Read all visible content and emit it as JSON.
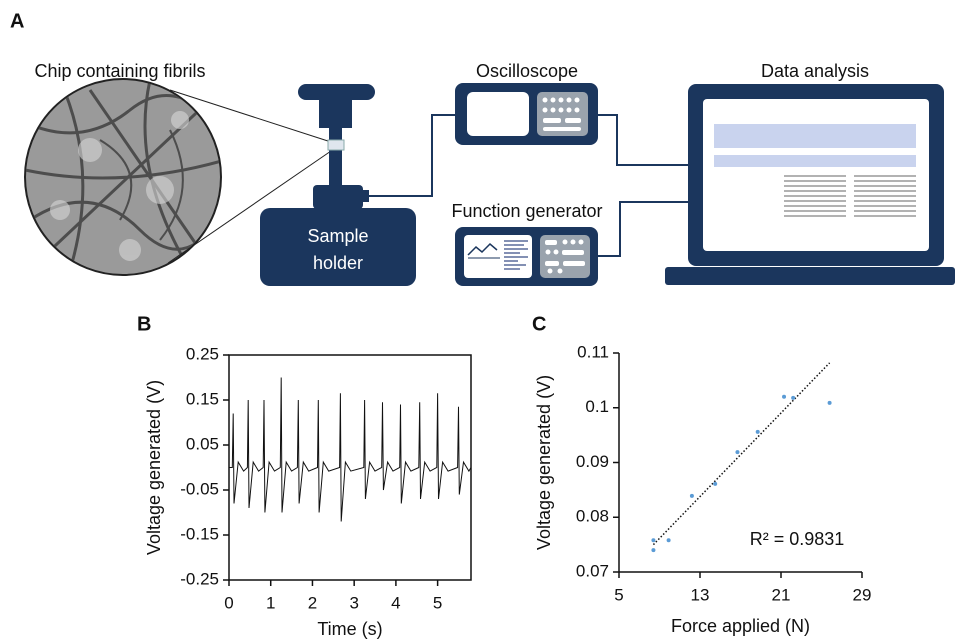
{
  "panel_a": {
    "label": "A",
    "chip_label": "Chip containing fibrils",
    "sample_holder": [
      "Sample",
      "holder"
    ],
    "oscilloscope": "Oscilloscope",
    "function_generator": "Function generator",
    "data_analysis": "Data analysis"
  },
  "chart_data": [
    {
      "type": "line",
      "panel_label": "B",
      "x_label": "Time (s)",
      "y_label": "Voltage generated (V)",
      "color": "#111111",
      "x": [
        0,
        0.08,
        0.1,
        0.12,
        0.22,
        0.35,
        0.44,
        0.46,
        0.48,
        0.58,
        0.71,
        0.82,
        0.84,
        0.86,
        0.96,
        1.09,
        1.23,
        1.25,
        1.27,
        1.37,
        1.5,
        1.64,
        1.66,
        1.68,
        1.78,
        1.91,
        2.12,
        2.14,
        2.16,
        2.26,
        2.39,
        2.65,
        2.67,
        2.69,
        2.79,
        2.92,
        3.23,
        3.25,
        3.27,
        3.37,
        3.5,
        3.66,
        3.68,
        3.7,
        3.8,
        3.93,
        4.09,
        4.11,
        4.13,
        4.23,
        4.36,
        4.55,
        4.57,
        4.59,
        4.69,
        4.82,
        4.98,
        5,
        5.02,
        5.12,
        5.25,
        5.48,
        5.5,
        5.52,
        5.62,
        5.75,
        5.8
      ],
      "values": [
        0,
        0,
        0.12,
        -0.08,
        0.012,
        -0.008,
        0,
        0.15,
        -0.09,
        0.012,
        -0.008,
        0,
        0.15,
        -0.1,
        0.012,
        -0.008,
        0,
        0.2,
        -0.1,
        0.012,
        -0.008,
        0,
        0.15,
        -0.08,
        0.012,
        -0.008,
        0,
        0.15,
        -0.1,
        0.012,
        -0.008,
        0,
        0.165,
        -0.12,
        0.012,
        -0.008,
        0,
        0.15,
        -0.07,
        0.012,
        -0.008,
        0,
        0.145,
        -0.05,
        0.012,
        -0.008,
        0,
        0.14,
        -0.08,
        0.012,
        -0.008,
        0,
        0.145,
        -0.07,
        0.012,
        -0.008,
        0,
        0.165,
        -0.07,
        0.012,
        -0.008,
        0,
        0.135,
        -0.06,
        0.012,
        -0.008,
        0
      ],
      "xlim": [
        0,
        5.8
      ],
      "xticks": [
        0,
        1,
        2,
        3,
        4,
        5
      ],
      "ylim": [
        -0.25,
        0.25
      ],
      "yticks": [
        -0.25,
        -0.15,
        -0.05,
        0.05,
        0.15,
        0.25
      ],
      "frame": true
    },
    {
      "type": "scatter",
      "panel_label": "C",
      "x_label": "Force applied (N)",
      "y_label": "Voltage generated (V)",
      "color": "#5b9bd5",
      "x": [
        8.4,
        8.4,
        9.9,
        12.2,
        14.5,
        16.7,
        18.7,
        21.3,
        22.2,
        25.8
      ],
      "values": [
        0.0758,
        0.074,
        0.0758,
        0.0839,
        0.0861,
        0.0919,
        0.0956,
        0.102,
        0.1018,
        0.1009
      ],
      "trendline": {
        "x": [
          8.4,
          25.8
        ],
        "y": [
          0.075,
          0.1082
        ]
      },
      "annotation": "R² = 0.9831",
      "xlim": [
        5,
        29
      ],
      "xticks": [
        5,
        13,
        21,
        29
      ],
      "ylim": [
        0.07,
        0.11
      ],
      "yticks": [
        0.07,
        0.08,
        0.09,
        0.1,
        0.11
      ],
      "frame": false
    }
  ]
}
